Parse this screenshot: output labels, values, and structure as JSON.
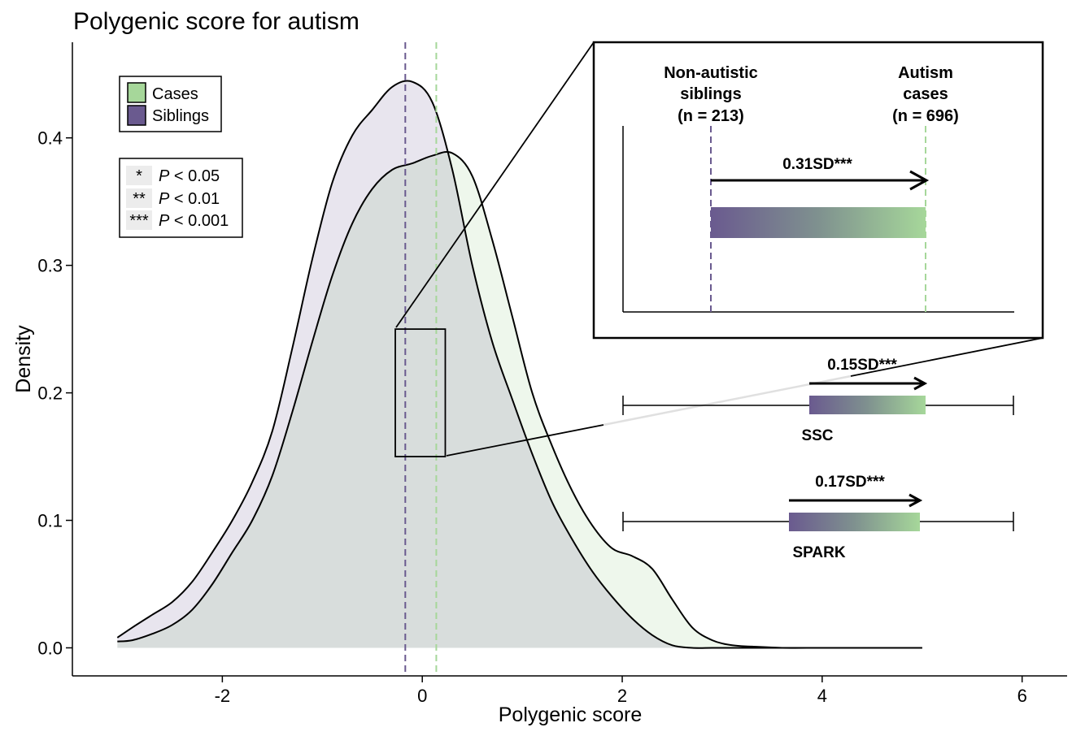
{
  "chart_data": {
    "type": "area",
    "title": "Polygenic score for autism",
    "xlabel": "Polygenic score",
    "ylabel": "Density",
    "xlim": [
      -3.5,
      6.45
    ],
    "ylim": [
      -0.022,
      0.475
    ],
    "x_ticks": [
      "-2",
      "0",
      "2",
      "4",
      "6"
    ],
    "x_tick_values": [
      -2,
      0,
      2,
      4,
      6
    ],
    "y_ticks": [
      "0.0",
      "0.1",
      "0.2",
      "0.3",
      "0.4"
    ],
    "y_tick_values": [
      0,
      0.1,
      0.2,
      0.3,
      0.4
    ],
    "grid": false,
    "legend_placement": "top-left",
    "series": [
      {
        "name": "Cases",
        "color": "#a6d79a",
        "fill": "#eef7ec",
        "mean": 0.14,
        "x": [
          -3.05,
          -2.9,
          -2.7,
          -2.5,
          -2.3,
          -2.1,
          -1.9,
          -1.7,
          -1.5,
          -1.3,
          -1.1,
          -0.9,
          -0.7,
          -0.5,
          -0.3,
          -0.1,
          0.1,
          0.3,
          0.5,
          0.7,
          0.9,
          1.1,
          1.3,
          1.5,
          1.7,
          1.9,
          2.1,
          2.3,
          2.5,
          2.7,
          2.9,
          3.1,
          3.3,
          3.6,
          4.0,
          4.5,
          5.0
        ],
        "y": [
          0.005,
          0.006,
          0.011,
          0.018,
          0.03,
          0.05,
          0.075,
          0.1,
          0.135,
          0.185,
          0.24,
          0.292,
          0.333,
          0.36,
          0.375,
          0.38,
          0.386,
          0.388,
          0.37,
          0.32,
          0.26,
          0.2,
          0.158,
          0.123,
          0.096,
          0.078,
          0.072,
          0.062,
          0.038,
          0.016,
          0.006,
          0.002,
          0.001,
          0.0,
          0.0,
          0.0,
          0.0
        ]
      },
      {
        "name": "Siblings",
        "color": "#6a5a8f",
        "fill": "#e8e5ee",
        "mean": -0.17,
        "x": [
          -3.05,
          -2.9,
          -2.7,
          -2.5,
          -2.3,
          -2.1,
          -1.9,
          -1.7,
          -1.5,
          -1.3,
          -1.1,
          -0.9,
          -0.7,
          -0.5,
          -0.3,
          -0.1,
          0.1,
          0.3,
          0.5,
          0.7,
          0.9,
          1.1,
          1.3,
          1.5,
          1.7,
          1.9,
          2.1,
          2.3,
          2.5,
          2.7,
          2.9,
          3.1,
          3.3,
          3.6,
          4.0,
          4.5,
          5.0
        ],
        "y": [
          0.008,
          0.016,
          0.026,
          0.036,
          0.052,
          0.075,
          0.1,
          0.13,
          0.17,
          0.235,
          0.305,
          0.365,
          0.402,
          0.422,
          0.44,
          0.444,
          0.428,
          0.375,
          0.3,
          0.24,
          0.195,
          0.152,
          0.114,
          0.085,
          0.06,
          0.04,
          0.023,
          0.01,
          0.002,
          0.0,
          0.0,
          0.0,
          0.0,
          0.0,
          0.0,
          0.0,
          0.0
        ]
      }
    ],
    "zoom_box": {
      "x": [
        -0.27,
        0.23
      ],
      "y": [
        0.15,
        0.25
      ]
    },
    "inset": {
      "left_label": [
        "Non-autistic",
        "siblings",
        "(n = 213)"
      ],
      "right_label": [
        "Autism",
        "cases",
        "(n = 696)"
      ],
      "effect_label": "0.31SD***"
    },
    "cohorts": [
      {
        "name": "SSC",
        "effect_label": "0.15SD***",
        "effect_sd": 0.15
      },
      {
        "name": "SPARK",
        "effect_label": "0.17SD***",
        "effect_sd": 0.17
      }
    ]
  },
  "legend": {
    "items": [
      {
        "label": "Cases",
        "color": "#a6d79a"
      },
      {
        "label": "Siblings",
        "color": "#6a5a8f"
      }
    ]
  },
  "pvalue_legend": [
    {
      "stars": "*",
      "p_symbol": "P",
      "text": " < 0.05"
    },
    {
      "stars": "**",
      "p_symbol": "P",
      "text": " < 0.01"
    },
    {
      "stars": "***",
      "p_symbol": "P",
      "text": " < 0.001"
    }
  ]
}
